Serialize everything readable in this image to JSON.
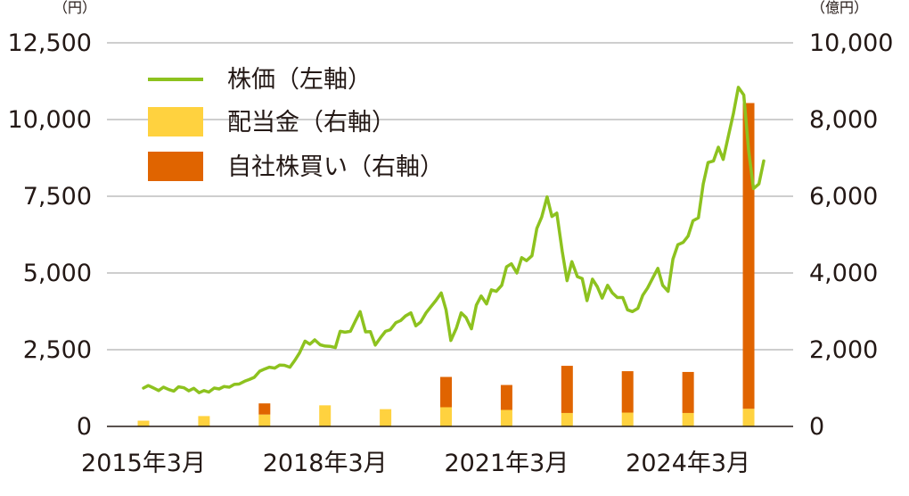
{
  "chart_data": {
    "type": "bar+line",
    "left_axis": {
      "unit": "（円）",
      "ticks": [
        "12,500",
        "10,000",
        "7,500",
        "5,000",
        "2,500",
        "0"
      ],
      "ylim": [
        0,
        12500
      ]
    },
    "right_axis": {
      "unit": "（億円）",
      "ticks": [
        "10,000",
        "8,000",
        "6,000",
        "4,000",
        "2,000",
        "0"
      ],
      "ylim": [
        0,
        10000
      ]
    },
    "x_tick_labels": [
      "2015年3月",
      "2018年3月",
      "2021年3月",
      "2024年3月"
    ],
    "grid": "horizontal",
    "legend": {
      "placement": "top-left",
      "items": [
        {
          "label": "株価（左軸）",
          "color": "#8dc21f",
          "kind": "line"
        },
        {
          "label": "配当金（右軸）",
          "color": "#ffd23f",
          "kind": "bar"
        },
        {
          "label": "自社株買い（右軸）",
          "color": "#e06400",
          "kind": "bar"
        }
      ]
    },
    "bars": {
      "x": [
        2015.0,
        2016.0,
        2017.0,
        2018.0,
        2019.0,
        2020.0,
        2021.0,
        2022.0,
        2023.0,
        2024.0,
        2025.0
      ],
      "dividend": [
        150,
        270,
        310,
        550,
        450,
        500,
        430,
        350,
        360,
        350,
        460
      ],
      "buyback": [
        0,
        0,
        290,
        0,
        0,
        790,
        650,
        1230,
        1080,
        1070,
        7970
      ]
    },
    "stock_price": {
      "x": [
        2015.0,
        2015.08,
        2015.17,
        2015.25,
        2015.33,
        2015.42,
        2015.5,
        2015.58,
        2015.67,
        2015.75,
        2015.83,
        2015.92,
        2016.0,
        2016.08,
        2016.17,
        2016.25,
        2016.33,
        2016.42,
        2016.5,
        2016.58,
        2016.67,
        2016.75,
        2016.83,
        2016.92,
        2017.0,
        2017.08,
        2017.17,
        2017.25,
        2017.33,
        2017.42,
        2017.5,
        2017.58,
        2017.67,
        2017.75,
        2017.83,
        2017.92,
        2018.0,
        2018.08,
        2018.17,
        2018.25,
        2018.33,
        2018.42,
        2018.5,
        2018.58,
        2018.67,
        2018.75,
        2018.83,
        2018.92,
        2019.0,
        2019.08,
        2019.17,
        2019.25,
        2019.33,
        2019.42,
        2019.5,
        2019.58,
        2019.67,
        2019.75,
        2019.83,
        2019.92,
        2020.0,
        2020.08,
        2020.17,
        2020.25,
        2020.33,
        2020.42,
        2020.5,
        2020.58,
        2020.67,
        2020.75,
        2020.83,
        2020.92,
        2021.0,
        2021.08,
        2021.17,
        2021.25,
        2021.33,
        2021.42,
        2021.5,
        2021.58,
        2021.67,
        2021.75,
        2021.83,
        2021.92,
        2022.0,
        2022.08,
        2022.17,
        2022.25,
        2022.33,
        2022.42,
        2022.5,
        2022.58,
        2022.67,
        2022.75,
        2022.83,
        2022.92,
        2023.0,
        2023.08,
        2023.17,
        2023.25,
        2023.33,
        2023.42,
        2023.5,
        2023.58,
        2023.67,
        2023.75,
        2023.83,
        2023.92,
        2024.0,
        2024.08,
        2024.17,
        2024.25,
        2024.33,
        2024.42,
        2024.5,
        2024.58,
        2024.67,
        2024.75,
        2024.83,
        2024.92,
        2025.0,
        2025.08,
        2025.17,
        2025.25
      ],
      "values": [
        1250,
        1330,
        1250,
        1170,
        1280,
        1200,
        1150,
        1290,
        1260,
        1160,
        1240,
        1100,
        1170,
        1120,
        1250,
        1220,
        1300,
        1280,
        1370,
        1380,
        1470,
        1530,
        1600,
        1800,
        1870,
        1930,
        1900,
        2000,
        1990,
        1930,
        2150,
        2400,
        2780,
        2680,
        2820,
        2660,
        2620,
        2610,
        2570,
        3100,
        3070,
        3100,
        3430,
        3740,
        3080,
        3090,
        2650,
        2900,
        3100,
        3150,
        3380,
        3450,
        3600,
        3700,
        3280,
        3400,
        3700,
        3900,
        4100,
        4350,
        3800,
        2800,
        3200,
        3700,
        3550,
        3180,
        3950,
        4250,
        3990,
        4450,
        4400,
        4600,
        5200,
        5300,
        5000,
        5500,
        5400,
        5560,
        6450,
        6820,
        7480,
        6840,
        6950,
        5700,
        4750,
        5370,
        4880,
        4820,
        4100,
        4800,
        4550,
        4180,
        4600,
        4350,
        4200,
        4200,
        3800,
        3740,
        3850,
        4270,
        4510,
        4850,
        5150,
        4600,
        4400,
        5450,
        5920,
        6000,
        6200,
        6700,
        6800,
        7900,
        8600,
        8650,
        9100,
        8700,
        9500,
        10200,
        11050,
        10800,
        9000,
        7750,
        7900,
        8650
      ]
    }
  }
}
